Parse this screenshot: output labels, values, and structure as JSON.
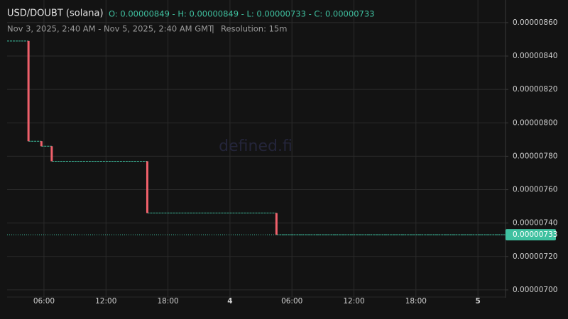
{
  "chart_data": {
    "type": "candlestick",
    "title": "USD/DOUBT (solana)",
    "ohlc_summary": "O: 0.00000849 - H: 0.00000849 - L: 0.00000733 - C: 0.00000733",
    "subtitle": "Nov 3, 2025, 2:40 AM - Nov 5, 2025, 2:40 AM GMT",
    "resolution": "Resolution: 15m",
    "watermark": "defined.fi",
    "up_color": "#3fc1a0",
    "down_color": "#f0606b",
    "candles": [
      {
        "x": 4.5,
        "open": 8.49e-06,
        "high": 8.49e-06,
        "low": 7.89e-06,
        "close": 7.89e-06
      },
      {
        "x": 5.75,
        "open": 7.89e-06,
        "high": 7.89e-06,
        "low": 7.86e-06,
        "close": 7.86e-06
      },
      {
        "x": 6.75,
        "open": 7.86e-06,
        "high": 7.86e-06,
        "low": 7.77e-06,
        "close": 7.77e-06
      },
      {
        "x": 16,
        "open": 7.77e-06,
        "high": 7.77e-06,
        "low": 7.46e-06,
        "close": 7.46e-06
      },
      {
        "x": 28.5,
        "open": 7.46e-06,
        "high": 7.46e-06,
        "low": 7.33e-06,
        "close": 7.33e-06
      }
    ],
    "last_price": {
      "value": 7.33e-06,
      "label": "0.00000733"
    },
    "xlim": [
      2.43,
      50.67
    ],
    "xticks": [
      {
        "value": 6,
        "label": "06:00"
      },
      {
        "value": 12,
        "label": "12:00"
      },
      {
        "value": 18,
        "label": "18:00"
      },
      {
        "value": 24,
        "label": "4"
      },
      {
        "value": 30,
        "label": "06:00"
      },
      {
        "value": 36,
        "label": "12:00"
      },
      {
        "value": 42,
        "label": "18:00"
      },
      {
        "value": 48,
        "label": "5"
      }
    ],
    "ylim": [
      6.987e-06,
      8.693e-06
    ],
    "yticks": [
      {
        "value": 7e-06,
        "label": "0.00000700"
      },
      {
        "value": 7.2e-06,
        "label": "0.00000720"
      },
      {
        "value": 7.4e-06,
        "label": "0.00000740"
      },
      {
        "value": 7.6e-06,
        "label": "0.00000760"
      },
      {
        "value": 7.8e-06,
        "label": "0.00000780"
      },
      {
        "value": 8e-06,
        "label": "0.00000800"
      },
      {
        "value": 8.2e-06,
        "label": "0.00000820"
      },
      {
        "value": 8.4e-06,
        "label": "0.00000840"
      },
      {
        "value": 8.6e-06,
        "label": "0.00000860"
      }
    ],
    "grid": true
  }
}
